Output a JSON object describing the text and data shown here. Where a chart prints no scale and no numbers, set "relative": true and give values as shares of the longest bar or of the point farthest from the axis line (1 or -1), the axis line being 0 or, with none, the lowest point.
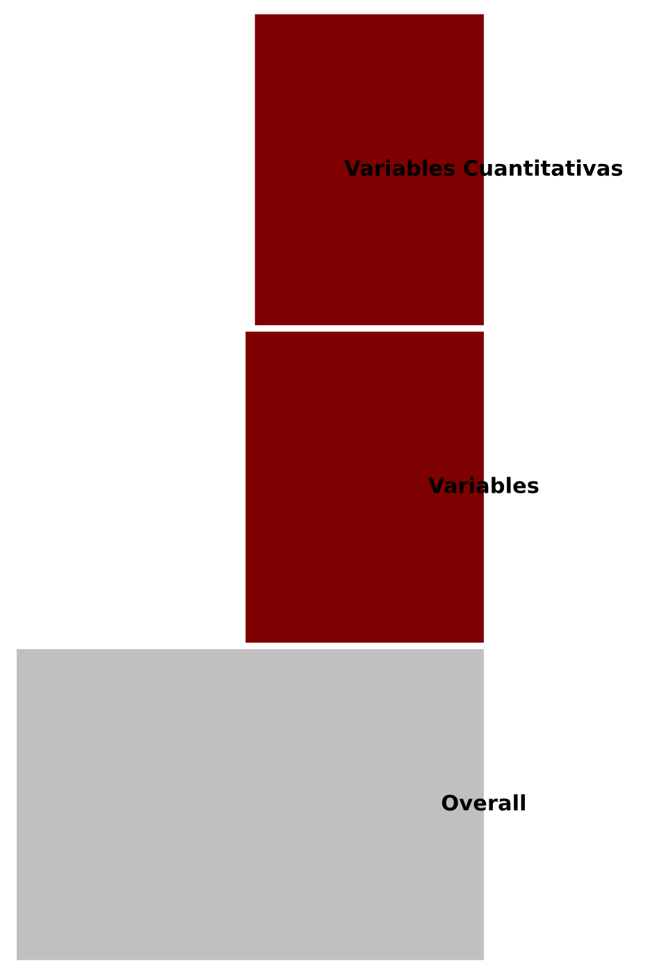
{
  "chart_data": {
    "type": "bar",
    "orientation": "horizontal",
    "relative": true,
    "categories": [
      "Variables Cuantitativas",
      "Variables",
      "Overall"
    ],
    "values": [
      0.49,
      0.51,
      1
    ],
    "xlim": [
      1,
      0
    ],
    "colors": [
      "#7f0000",
      "#7f0000",
      "#c0c0c0"
    ]
  }
}
